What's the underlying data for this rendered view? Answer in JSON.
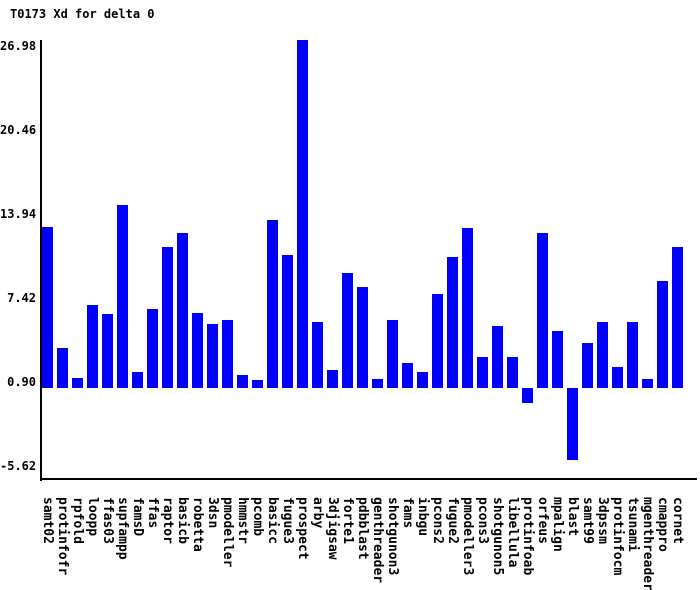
{
  "chart_data": {
    "type": "bar",
    "title": "T0173 Xd for delta 0",
    "xlabel": "",
    "ylabel": "",
    "categories": [
      "samt02",
      "protinfofr",
      "rpfold",
      "loopp",
      "ffas03",
      "supfampp",
      "famsD",
      "ffas",
      "raptor",
      "basicb",
      "robetta",
      "3dsn",
      "pmodeller",
      "hmmstr",
      "pcomb",
      "basicc",
      "fugue3",
      "prospect",
      "arby",
      "3djigsaw",
      "forte1",
      "pdbblast",
      "genthreader",
      "shotgunon3",
      "fams",
      "inbgu",
      "pcons2",
      "fugue2",
      "pmodeller3",
      "pcons3",
      "shotgunon5",
      "libellula",
      "protinfoab",
      "orfeus",
      "mpalign",
      "blast",
      "samt99",
      "3dpssm",
      "protinfocm",
      "tsunami",
      "mgenthreader",
      "cmappro",
      "cornet"
    ],
    "values": [
      12.5,
      3.1,
      0.8,
      6.4,
      5.7,
      14.2,
      1.2,
      6.1,
      10.9,
      12.0,
      5.8,
      5.0,
      5.3,
      1.0,
      0.6,
      13.0,
      10.3,
      27.0,
      5.1,
      1.4,
      8.9,
      7.8,
      0.7,
      5.3,
      1.9,
      1.2,
      7.3,
      10.2,
      12.4,
      2.4,
      4.8,
      2.4,
      -1.2,
      12.0,
      4.4,
      -5.6,
      3.5,
      5.1,
      1.6,
      5.1,
      0.7,
      8.3,
      10.9
    ],
    "yticks": [
      "26.98",
      "20.46",
      "13.94",
      "7.42",
      "0.90",
      "-5.62"
    ],
    "ytick_values": [
      26.98,
      20.46,
      13.94,
      7.42,
      0.9,
      -5.62
    ],
    "ylim": [
      -7.15,
      27.0
    ],
    "baseline": 0,
    "bar_color": "#0000ff",
    "axis_color": "#000000",
    "background_color": "#ffffff",
    "grid": false,
    "legend": "none",
    "x_labels_rotated": true
  }
}
